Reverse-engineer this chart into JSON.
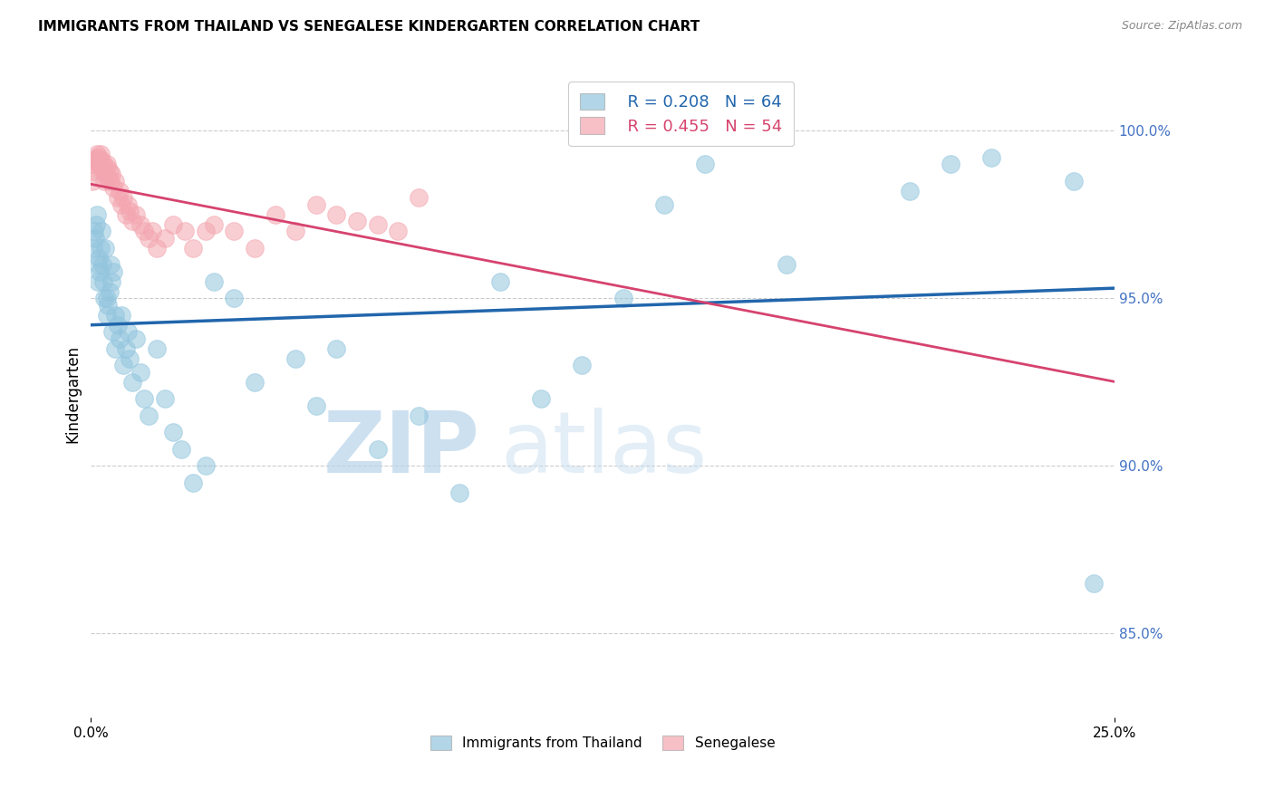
{
  "title": "IMMIGRANTS FROM THAILAND VS SENEGALESE KINDERGARTEN CORRELATION CHART",
  "source": "Source: ZipAtlas.com",
  "ylabel": "Kindergarten",
  "right_yticks": [
    85.0,
    90.0,
    95.0,
    100.0
  ],
  "xlim": [
    0.0,
    25.0
  ],
  "ylim": [
    82.5,
    101.8
  ],
  "legend1_r": "R = 0.208",
  "legend1_n": "N = 64",
  "legend2_r": "R = 0.455",
  "legend2_n": "N = 54",
  "blue_color": "#92c5de",
  "pink_color": "#f4a6b0",
  "trend_blue": "#2166ac",
  "trend_pink": "#d6436e",
  "watermark_zip": "ZIP",
  "watermark_atlas": "atlas",
  "blue_x": [
    0.05,
    0.08,
    0.1,
    0.12,
    0.14,
    0.16,
    0.18,
    0.2,
    0.22,
    0.24,
    0.26,
    0.28,
    0.3,
    0.32,
    0.35,
    0.38,
    0.4,
    0.42,
    0.45,
    0.48,
    0.5,
    0.52,
    0.55,
    0.58,
    0.6,
    0.65,
    0.7,
    0.75,
    0.8,
    0.85,
    0.9,
    0.95,
    1.0,
    1.1,
    1.2,
    1.3,
    1.4,
    1.6,
    1.8,
    2.0,
    2.2,
    2.5,
    2.8,
    3.0,
    3.5,
    4.0,
    5.0,
    5.5,
    6.0,
    7.0,
    8.0,
    9.0,
    10.0,
    11.0,
    12.0,
    13.0,
    14.0,
    15.0,
    17.0,
    20.0,
    21.0,
    22.0,
    24.0,
    24.5
  ],
  "blue_y": [
    96.5,
    97.0,
    96.8,
    97.2,
    97.5,
    96.0,
    95.5,
    96.2,
    95.8,
    96.5,
    97.0,
    96.0,
    95.5,
    95.0,
    96.5,
    94.5,
    95.0,
    94.8,
    95.2,
    96.0,
    95.5,
    94.0,
    95.8,
    94.5,
    93.5,
    94.2,
    93.8,
    94.5,
    93.0,
    93.5,
    94.0,
    93.2,
    92.5,
    93.8,
    92.8,
    92.0,
    91.5,
    93.5,
    92.0,
    91.0,
    90.5,
    89.5,
    90.0,
    95.5,
    95.0,
    92.5,
    93.2,
    91.8,
    93.5,
    90.5,
    91.5,
    89.2,
    95.5,
    92.0,
    93.0,
    95.0,
    97.8,
    99.0,
    96.0,
    98.2,
    99.0,
    99.2,
    98.5,
    86.5
  ],
  "pink_x": [
    0.04,
    0.06,
    0.08,
    0.1,
    0.12,
    0.14,
    0.16,
    0.18,
    0.2,
    0.22,
    0.24,
    0.26,
    0.28,
    0.3,
    0.32,
    0.35,
    0.38,
    0.4,
    0.42,
    0.45,
    0.48,
    0.5,
    0.55,
    0.6,
    0.65,
    0.7,
    0.75,
    0.8,
    0.85,
    0.9,
    0.95,
    1.0,
    1.1,
    1.2,
    1.3,
    1.4,
    1.5,
    1.6,
    1.8,
    2.0,
    2.3,
    2.5,
    2.8,
    3.0,
    3.5,
    4.0,
    4.5,
    5.0,
    5.5,
    6.0,
    6.5,
    7.0,
    7.5,
    8.0
  ],
  "pink_y": [
    98.5,
    98.8,
    99.0,
    99.1,
    99.2,
    99.3,
    99.0,
    99.1,
    99.2,
    99.0,
    99.3,
    99.1,
    98.8,
    99.0,
    98.5,
    98.7,
    98.9,
    99.0,
    98.6,
    98.8,
    98.5,
    98.7,
    98.3,
    98.5,
    98.0,
    98.2,
    97.8,
    98.0,
    97.5,
    97.8,
    97.6,
    97.3,
    97.5,
    97.2,
    97.0,
    96.8,
    97.0,
    96.5,
    96.8,
    97.2,
    97.0,
    96.5,
    97.0,
    97.2,
    97.0,
    96.5,
    97.5,
    97.0,
    97.8,
    97.5,
    97.3,
    97.2,
    97.0,
    98.0
  ]
}
